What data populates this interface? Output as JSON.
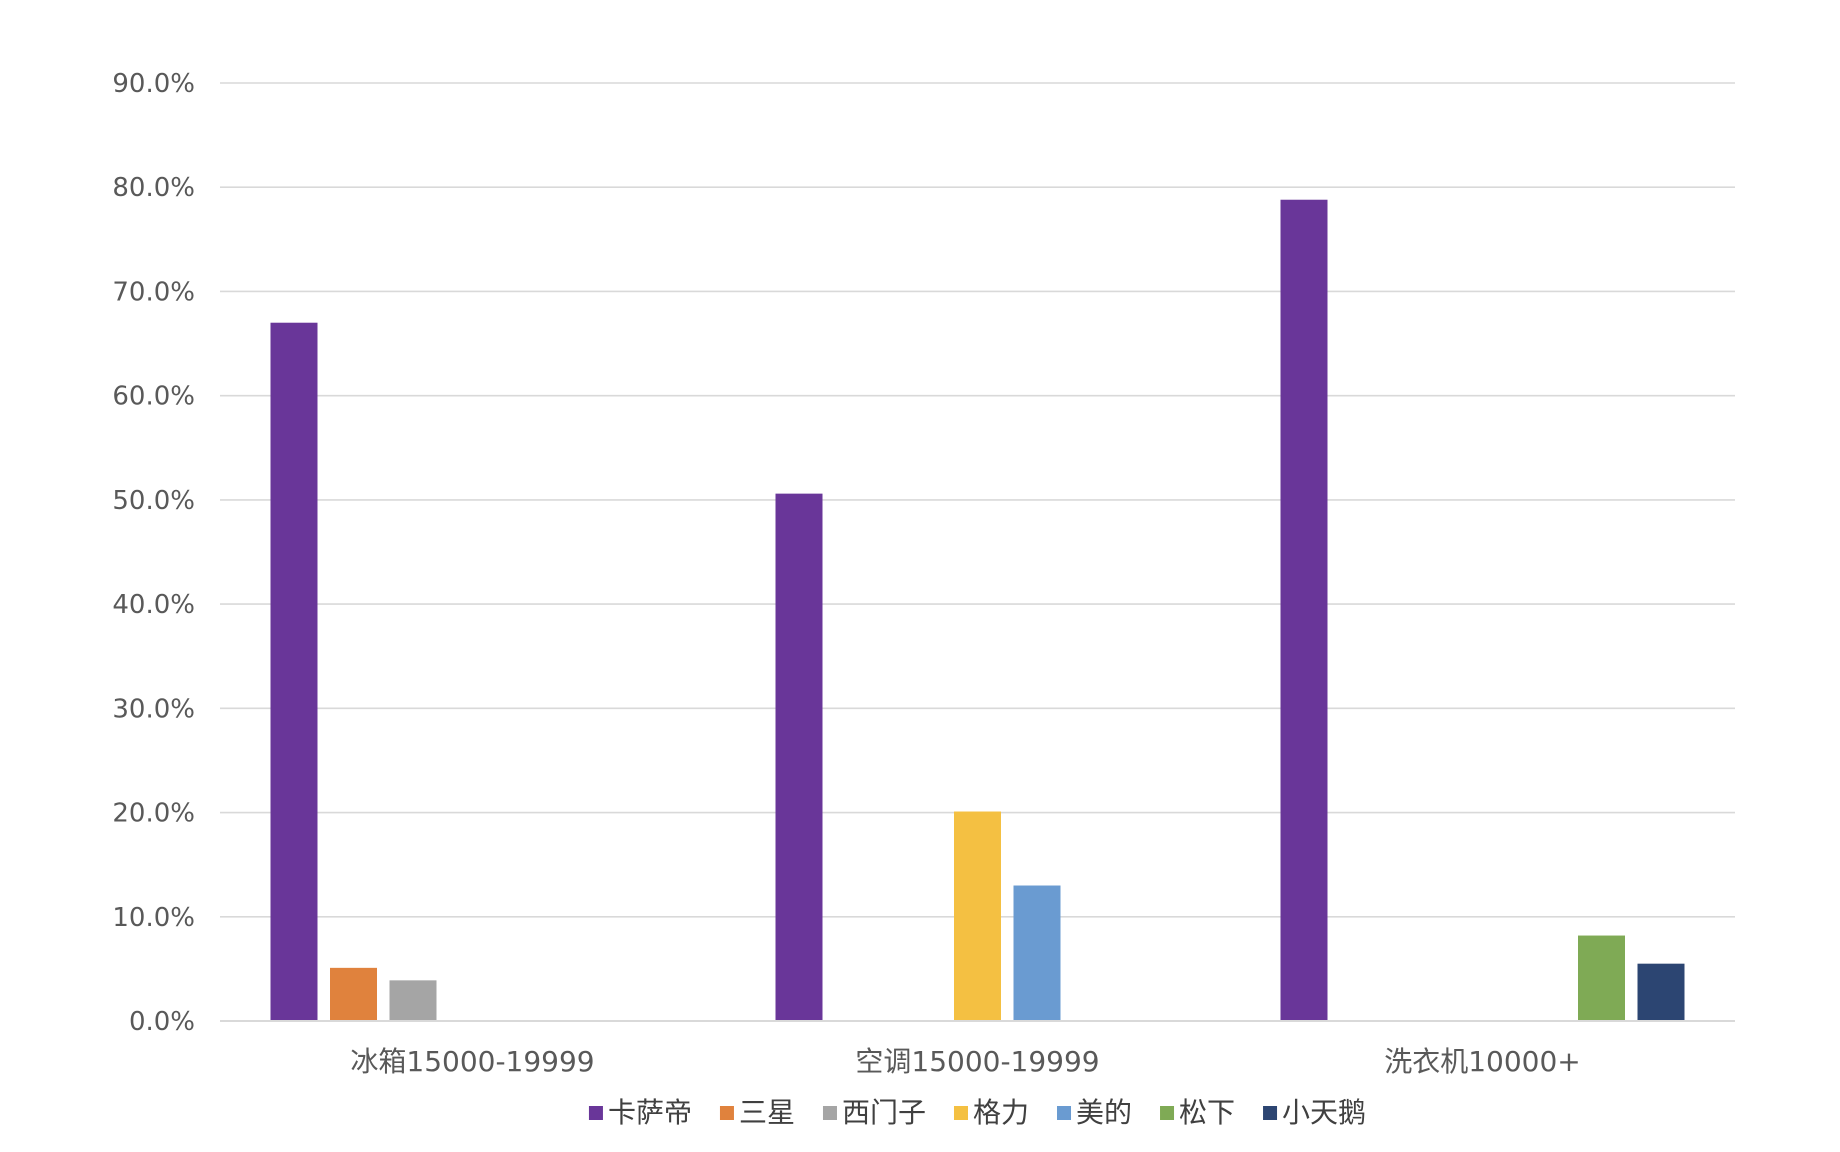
{
  "chart_data": {
    "type": "bar",
    "categories": [
      "冰箱15000-19999",
      "空调15000-19999",
      "洗衣机10000+"
    ],
    "series": [
      {
        "name": "卡萨帝",
        "color": "#693699",
        "values": [
          67.0,
          50.6,
          78.8
        ]
      },
      {
        "name": "三星",
        "color": "#E0823D",
        "values": [
          5.1,
          null,
          null
        ]
      },
      {
        "name": "西门子",
        "color": "#A5A5A5",
        "values": [
          3.9,
          null,
          null
        ]
      },
      {
        "name": "格力",
        "color": "#F4C042",
        "values": [
          null,
          20.1,
          null
        ]
      },
      {
        "name": "美的",
        "color": "#6A9BD1",
        "values": [
          null,
          13.0,
          null
        ]
      },
      {
        "name": "松下",
        "color": "#7FAA55",
        "values": [
          null,
          null,
          8.2
        ]
      },
      {
        "name": "小天鹅",
        "color": "#2C4572",
        "values": [
          null,
          null,
          5.5
        ]
      }
    ],
    "y_ticks": [
      "0.0%",
      "10.0%",
      "20.0%",
      "30.0%",
      "40.0%",
      "50.0%",
      "60.0%",
      "70.0%",
      "80.0%",
      "90.0%"
    ],
    "ylim": [
      0,
      90
    ],
    "grid": true,
    "legend_position": "bottom",
    "title": "",
    "xlabel": "",
    "ylabel": ""
  }
}
